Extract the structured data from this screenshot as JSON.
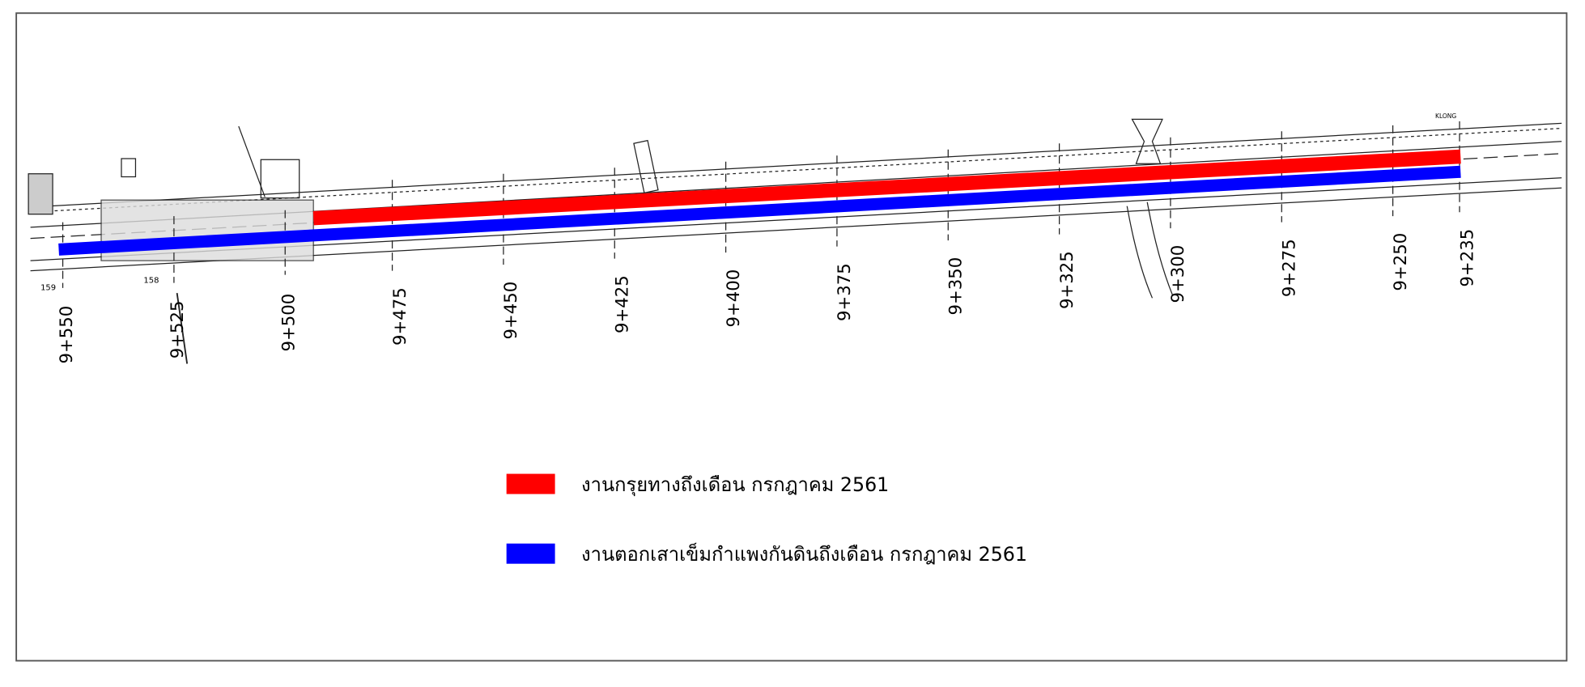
{
  "drawing": {
    "stations": [
      "9+550",
      "9+525",
      "9+500",
      "9+475",
      "9+450",
      "9+425",
      "9+400",
      "9+375",
      "9+350",
      "9+325",
      "9+300",
      "9+275",
      "9+250",
      "9+235"
    ],
    "markers": [
      "159",
      "158"
    ],
    "note": "KLONG"
  },
  "legend": {
    "items": [
      {
        "label": "งานกรุยทางถึงเดือน กรกฎาคม 2561"
      },
      {
        "label": "งานตอกเสาเข็มกำแพงกันดินถึงเดือน กรกฎาคม 2561"
      }
    ]
  }
}
